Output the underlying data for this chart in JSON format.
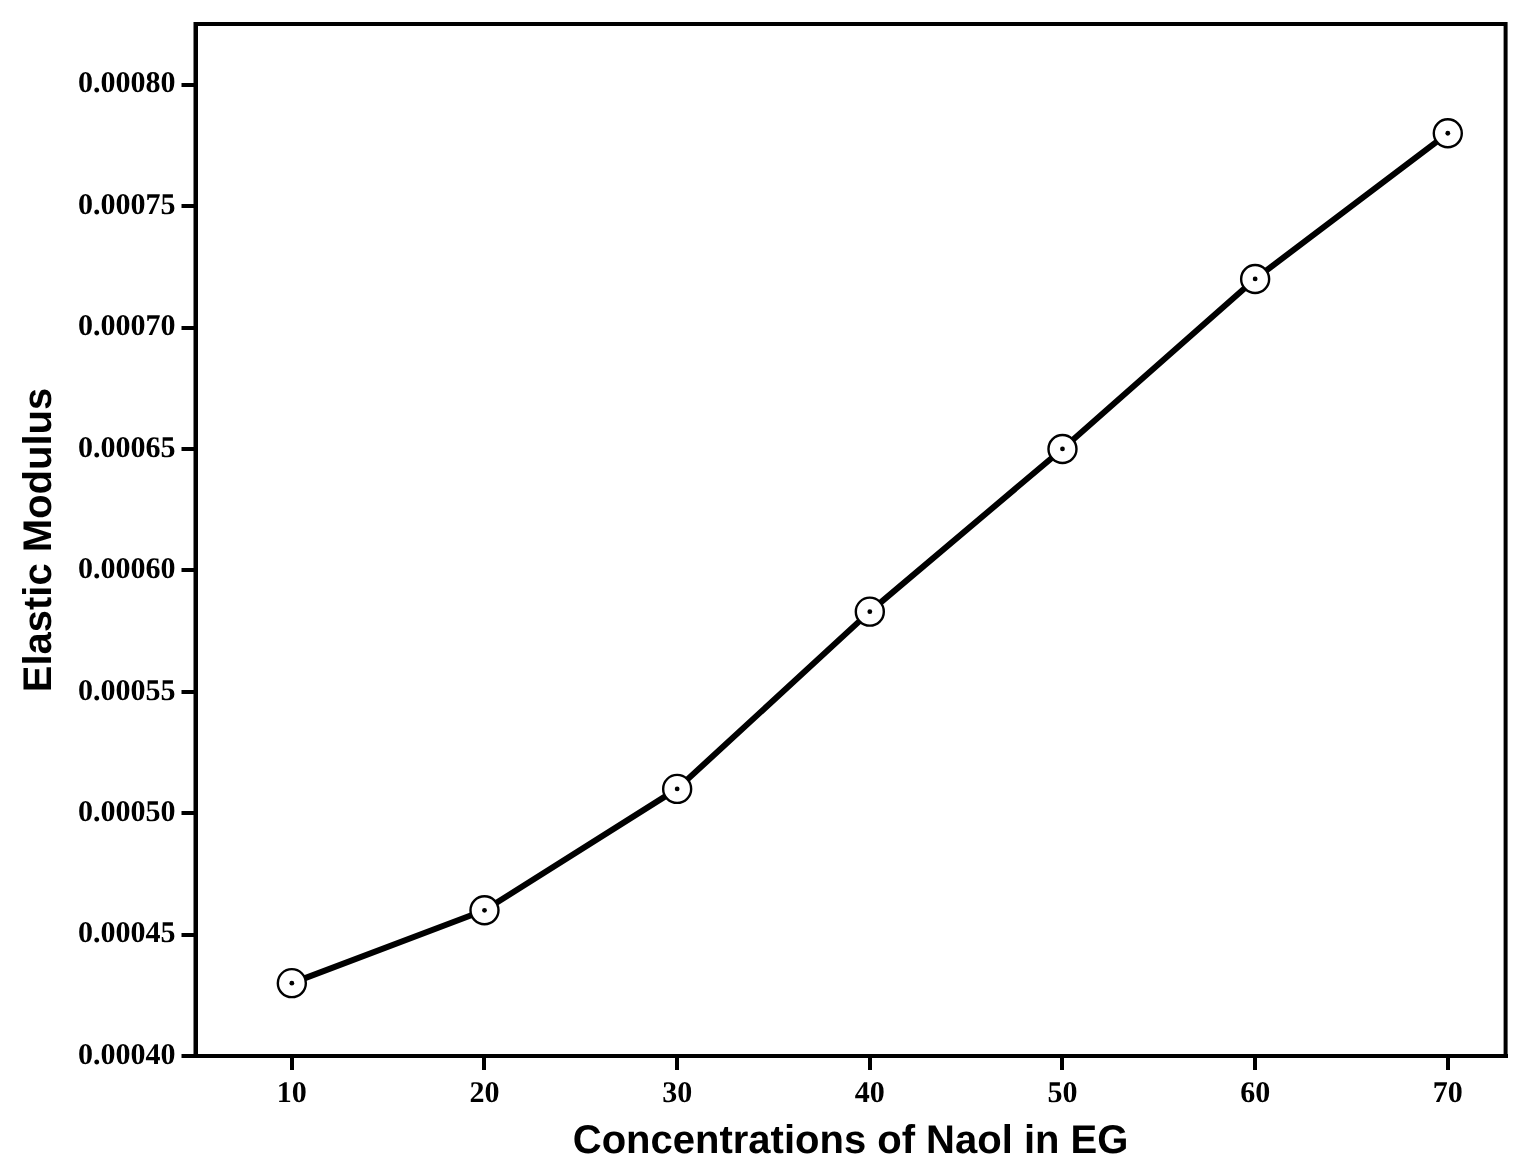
{
  "chart_data": {
    "type": "line",
    "xlabel": "Concentrations of Naol in EG",
    "ylabel": "Elastic Modulus",
    "x": [
      10,
      20,
      30,
      40,
      50,
      60,
      70
    ],
    "series": [
      {
        "color": "#000000",
        "values": [
          0.00043,
          0.00046,
          0.00051,
          0.000583,
          0.00065,
          0.00072,
          0.00078
        ]
      }
    ],
    "xlim": [
      5,
      73
    ],
    "xticks": [
      10,
      20,
      30,
      40,
      50,
      60,
      70
    ],
    "ylim": [
      0.0004,
      0.000825
    ],
    "yticks": [
      {
        "value": 0.0004,
        "label": "0.00040"
      },
      {
        "value": 0.00045,
        "label": "0.00045"
      },
      {
        "value": 0.0005,
        "label": "0.00050"
      },
      {
        "value": 0.00055,
        "label": "0.00055"
      },
      {
        "value": 0.0006,
        "label": "0.00060"
      },
      {
        "value": 0.00065,
        "label": "0.00065"
      },
      {
        "value": 0.0007,
        "label": "0.00070"
      },
      {
        "value": 0.00075,
        "label": "0.00075"
      },
      {
        "value": 0.0008,
        "label": "0.00080"
      }
    ],
    "grid": false,
    "legend": false,
    "marker": "circle",
    "line_style": "solid"
  }
}
